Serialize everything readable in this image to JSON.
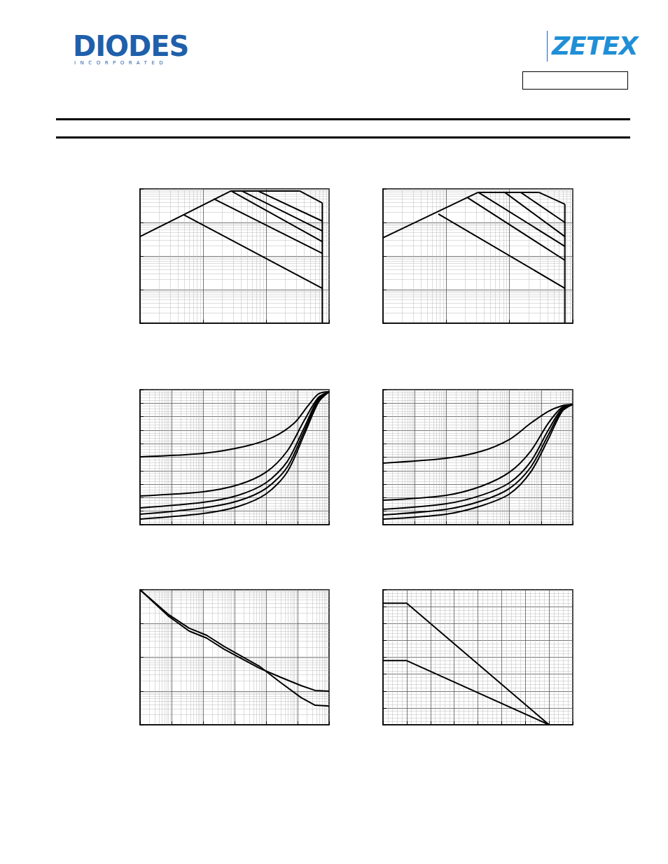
{
  "header": {
    "left_logo": "DIODES",
    "left_logo_subtitle": "INCORPORATED",
    "right_logo": "ZETEX"
  },
  "chart_data": [
    {
      "type": "line",
      "log": true,
      "grid": true,
      "tick_labels": false,
      "color": "#000000",
      "xlim": [
        0.1,
        100
      ],
      "xticks": [
        0.1,
        1,
        10,
        100
      ],
      "ylim": [
        0.01,
        100
      ],
      "yticks": [
        0.01,
        0.1,
        1,
        10,
        100
      ],
      "series": [
        {
          "x": [
            0.1,
            2.78
          ],
          "values": [
            3.8,
            87
          ]
        },
        {
          "x": [
            2.78,
            34
          ],
          "values": [
            87,
            87
          ]
        },
        {
          "x": [
            34,
            78
          ],
          "values": [
            87,
            38
          ]
        },
        {
          "x": [
            78,
            78
          ],
          "values": [
            38,
            0.01
          ]
        },
        {
          "x": [
            0.49,
            78
          ],
          "values": [
            17,
            0.11
          ]
        },
        {
          "x": [
            1.47,
            78
          ],
          "values": [
            51,
            1.2
          ]
        },
        {
          "x": [
            2.78,
            78
          ],
          "values": [
            87,
            2.7
          ]
        },
        {
          "x": [
            4.1,
            78
          ],
          "values": [
            87,
            5.6
          ]
        },
        {
          "x": [
            7.4,
            78
          ],
          "values": [
            87,
            11
          ]
        }
      ]
    },
    {
      "type": "line",
      "log": true,
      "grid": true,
      "tick_labels": false,
      "color": "#000000",
      "xlim": [
        0.1,
        100
      ],
      "xticks": [
        0.1,
        1,
        10,
        100
      ],
      "ylim": [
        0.01,
        100
      ],
      "yticks": [
        0.01,
        0.1,
        1,
        10,
        100
      ],
      "series": [
        {
          "x": [
            0.1,
            3.2
          ],
          "values": [
            3.5,
            79
          ]
        },
        {
          "x": [
            3.2,
            29
          ],
          "values": [
            79,
            79
          ]
        },
        {
          "x": [
            29,
            75
          ],
          "values": [
            79,
            35
          ]
        },
        {
          "x": [
            75,
            75
          ],
          "values": [
            35,
            0.01
          ]
        },
        {
          "x": [
            0.75,
            75
          ],
          "values": [
            17.8,
            0.11
          ]
        },
        {
          "x": [
            2.2,
            75
          ],
          "values": [
            54,
            0.75
          ]
        },
        {
          "x": [
            3.2,
            75
          ],
          "values": [
            79,
            1.95
          ]
        },
        {
          "x": [
            8.4,
            75
          ],
          "values": [
            79,
            3.8
          ]
        },
        {
          "x": [
            15,
            75
          ],
          "values": [
            79,
            10
          ]
        }
      ]
    },
    {
      "type": "line",
      "log": "x",
      "grid": true,
      "tick_labels": false,
      "color": "#000000",
      "xlim": [
        0.0001,
        100
      ],
      "xticks": [
        0.0001,
        0.001,
        0.01,
        0.1,
        1,
        10,
        100
      ],
      "ylim": [
        0,
        100
      ],
      "yticks": [
        0,
        10,
        20,
        30,
        40,
        50,
        60,
        70,
        80,
        90,
        100
      ],
      "series": [
        {
          "x": [
            0.0001,
            0.01,
            0.215,
            1.67,
            7.7,
            21.5,
            46,
            100
          ],
          "values": [
            50.3,
            52.8,
            58,
            64.8,
            75.1,
            88.1,
            96.9,
            98.4
          ]
        },
        {
          "x": [
            0.0001,
            0.01,
            0.129,
            1,
            4.64,
            16.7,
            46,
            100
          ],
          "values": [
            21.2,
            24.4,
            29.5,
            38.9,
            54.4,
            77.7,
            94.3,
            98.4
          ]
        },
        {
          "x": [
            0.0001,
            0.01,
            0.129,
            1,
            4.64,
            16.7,
            46,
            100
          ],
          "values": [
            12.4,
            16.6,
            21.8,
            31.1,
            46.6,
            72.5,
            93.3,
            98.4
          ]
        },
        {
          "x": [
            0.0001,
            0.01,
            0.129,
            1,
            4.64,
            16.7,
            46,
            100
          ],
          "values": [
            7.8,
            12.4,
            17.6,
            26.9,
            42.5,
            69.9,
            92.2,
            98.4
          ]
        },
        {
          "x": [
            0.0001,
            0.01,
            0.129,
            1,
            4.64,
            16.7,
            46,
            100
          ],
          "values": [
            4.1,
            8.3,
            13.5,
            22.8,
            38.9,
            67.4,
            90.7,
            98.4
          ]
        }
      ]
    },
    {
      "type": "line",
      "log": "x",
      "grid": true,
      "tick_labels": false,
      "color": "#000000",
      "xlim": [
        0.0001,
        100
      ],
      "xticks": [
        0.0001,
        0.001,
        0.01,
        0.1,
        1,
        10,
        100
      ],
      "ylim": [
        0,
        100
      ],
      "yticks": [
        0,
        10,
        20,
        30,
        40,
        50,
        60,
        70,
        80,
        90,
        100
      ],
      "series": [
        {
          "x": [
            0.0001,
            0.01,
            0.129,
            1,
            4.64,
            16.7,
            46,
            100
          ],
          "values": [
            45.6,
            49.2,
            54.4,
            63.2,
            75.1,
            83.9,
            88.1,
            89.1
          ]
        },
        {
          "x": [
            0.0001,
            0.01,
            0.129,
            1,
            4.64,
            16.7,
            46,
            100
          ],
          "values": [
            18.1,
            21.8,
            28.5,
            38.9,
            54.4,
            75.1,
            87.0,
            89.1
          ]
        },
        {
          "x": [
            0.0001,
            0.01,
            0.129,
            1,
            4.64,
            16.7,
            46,
            100
          ],
          "values": [
            11.4,
            15.5,
            21.8,
            31.1,
            46.6,
            69.9,
            86.0,
            89.1
          ]
        },
        {
          "x": [
            0.0001,
            0.01,
            0.129,
            1,
            4.64,
            16.7,
            46,
            100
          ],
          "values": [
            7.3,
            11.4,
            17.6,
            26.9,
            42.5,
            66.3,
            85.0,
            89.1
          ]
        },
        {
          "x": [
            0.0001,
            0.01,
            0.129,
            1,
            4.64,
            16.7,
            46,
            100
          ],
          "values": [
            4.1,
            7.8,
            14.0,
            22.8,
            38.9,
            63.2,
            83.9,
            89.1
          ]
        }
      ]
    },
    {
      "type": "line",
      "log": true,
      "grid": true,
      "tick_labels": false,
      "color": "#000000",
      "xlim": [
        0.0001,
        100
      ],
      "xticks": [
        0.0001,
        0.001,
        0.01,
        0.1,
        1,
        10,
        100
      ],
      "ylim": [
        1,
        10000
      ],
      "yticks": [
        1,
        10,
        100,
        1000,
        10000
      ],
      "series": [
        {
          "x": [
            0.0001,
            0.00077,
            0.0036,
            0.0129,
            0.046,
            0.6,
            2.78,
            12.9,
            36,
            100
          ],
          "values": [
            10000,
            1700,
            600,
            372,
            174,
            48,
            26,
            14.5,
            10.4,
            9.9
          ]
        },
        {
          "x": [
            0.0001,
            0.00077,
            0.0036,
            0.0129,
            0.046,
            0.6,
            2.78,
            12.9,
            36,
            100
          ],
          "values": [
            10000,
            1900,
            730,
            450,
            210,
            55,
            18.4,
            6.4,
            3.8,
            3.6
          ]
        }
      ]
    },
    {
      "type": "line",
      "grid": true,
      "tick_labels": false,
      "color": "#000000",
      "xlim": [
        0,
        200
      ],
      "xticks": [
        0,
        25,
        50,
        75,
        100,
        125,
        150,
        175,
        200
      ],
      "ylim": [
        0,
        2
      ],
      "yticks": [
        0,
        0.25,
        0.5,
        0.75,
        1,
        1.25,
        1.5,
        1.75,
        2
      ],
      "series": [
        {
          "x": [
            0,
            25,
            175
          ],
          "values": [
            1.8,
            1.8,
            0
          ]
        },
        {
          "x": [
            0,
            25,
            175
          ],
          "values": [
            0.95,
            0.95,
            0
          ]
        }
      ]
    }
  ]
}
